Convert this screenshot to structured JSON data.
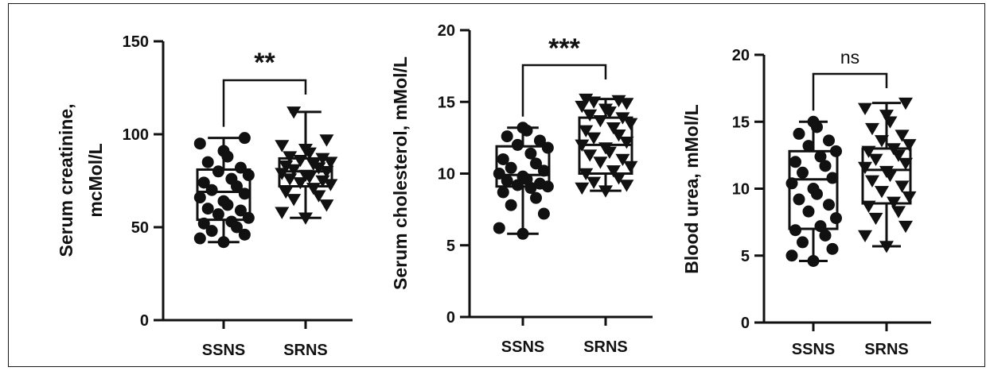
{
  "chart_data": [
    {
      "type": "box",
      "ylabel_lines": [
        "Serum creatinine,",
        "mcMol/L"
      ],
      "ylim": [
        0,
        150
      ],
      "yticks": [
        0,
        50,
        100,
        150
      ],
      "categories": [
        "SSNS",
        "SRNS"
      ],
      "significance": "**",
      "groups": [
        {
          "name": "SSNS",
          "marker": "circle",
          "min": 42,
          "q1": 54,
          "median": 69,
          "q3": 81,
          "max": 98,
          "points": [
            42,
            44,
            46,
            48,
            50,
            52,
            53,
            55,
            57,
            59,
            60,
            62,
            64,
            66,
            68,
            70,
            72,
            74,
            76,
            78,
            80,
            82,
            85,
            88,
            91,
            95,
            98
          ]
        },
        {
          "name": "SRNS",
          "marker": "triangle-down",
          "min": 55,
          "q1": 72,
          "median": 80,
          "q3": 87,
          "max": 112,
          "points": [
            55,
            58,
            62,
            65,
            67,
            69,
            71,
            73,
            74,
            75,
            76,
            77,
            78,
            79,
            80,
            81,
            82,
            83,
            84,
            85,
            86,
            87,
            88,
            90,
            92,
            94,
            97,
            112
          ]
        }
      ]
    },
    {
      "type": "box",
      "ylabel_lines": [
        "Serum cholesterol, mMol/L"
      ],
      "ylim": [
        0,
        20
      ],
      "yticks": [
        0,
        5,
        10,
        15,
        20
      ],
      "categories": [
        "SSNS",
        "SRNS"
      ],
      "significance": "***",
      "groups": [
        {
          "name": "SSNS",
          "marker": "circle",
          "min": 5.8,
          "q1": 9.1,
          "median": 9.9,
          "q3": 11.9,
          "max": 13.2,
          "points": [
            5.8,
            6.2,
            7.2,
            7.8,
            8.3,
            8.7,
            9.0,
            9.1,
            9.2,
            9.3,
            9.5,
            9.6,
            9.8,
            10.0,
            10.2,
            10.4,
            10.7,
            11.0,
            11.4,
            11.8,
            12.0,
            12.3,
            12.6,
            13.0,
            13.2
          ]
        },
        {
          "name": "SRNS",
          "marker": "triangle-down",
          "min": 8.8,
          "q1": 10.0,
          "median": 12.0,
          "q3": 13.9,
          "max": 15.2,
          "points": [
            8.8,
            9.0,
            9.2,
            9.4,
            9.7,
            10.0,
            10.2,
            10.5,
            10.8,
            11.0,
            11.3,
            11.5,
            11.8,
            12.0,
            12.2,
            12.5,
            12.7,
            13.0,
            13.2,
            13.5,
            13.7,
            13.9,
            14.1,
            14.3,
            14.5,
            14.7,
            14.9,
            15.0,
            15.1,
            15.2
          ]
        }
      ]
    },
    {
      "type": "box",
      "ylabel_lines": [
        "Blood urea, mMol/L"
      ],
      "ylim": [
        0,
        20
      ],
      "yticks": [
        0,
        5,
        10,
        15,
        20
      ],
      "categories": [
        "SSNS",
        "SRNS"
      ],
      "significance": "ns",
      "groups": [
        {
          "name": "SSNS",
          "marker": "circle",
          "min": 4.6,
          "q1": 7.0,
          "median": 10.7,
          "q3": 12.8,
          "max": 15.0,
          "points": [
            4.6,
            5.0,
            5.5,
            6.0,
            6.5,
            6.9,
            7.2,
            7.8,
            8.3,
            8.8,
            9.2,
            9.6,
            10.0,
            10.4,
            10.8,
            11.2,
            11.7,
            12.0,
            12.4,
            12.8,
            13.2,
            13.6,
            14.1,
            14.6,
            15.0
          ]
        },
        {
          "name": "SRNS",
          "marker": "triangle-down",
          "min": 5.7,
          "q1": 8.9,
          "median": 11.4,
          "q3": 13.0,
          "max": 16.4,
          "points": [
            5.7,
            6.5,
            7.2,
            7.8,
            8.3,
            8.7,
            9.0,
            9.4,
            9.8,
            10.2,
            10.6,
            11.0,
            11.3,
            11.6,
            11.9,
            12.2,
            12.5,
            12.8,
            13.0,
            13.3,
            13.6,
            14.0,
            14.5,
            15.0,
            15.5,
            16.0,
            16.4
          ]
        }
      ]
    }
  ]
}
